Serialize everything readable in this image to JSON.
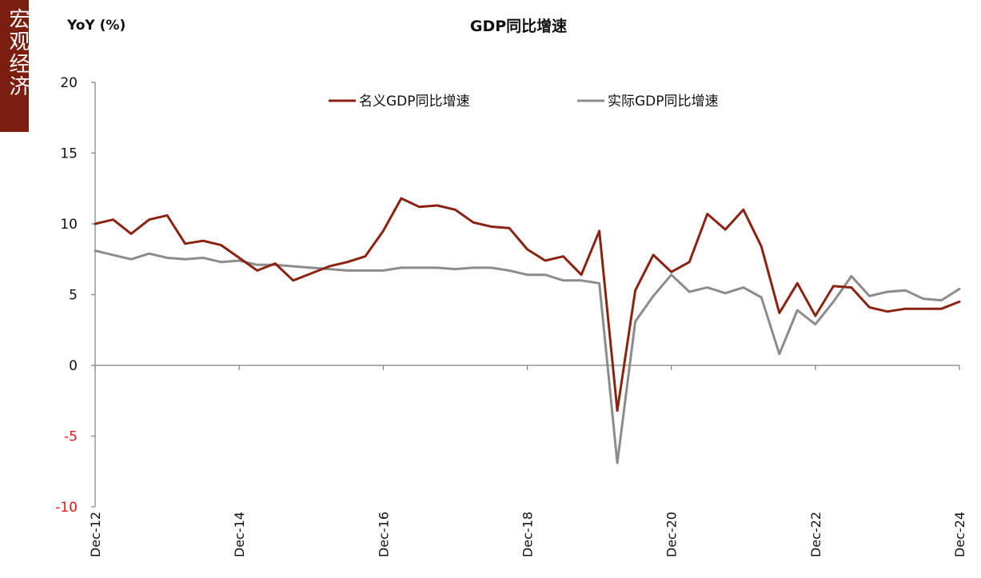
{
  "sidebar": {
    "label": "宏观经济"
  },
  "chart_data": {
    "type": "line",
    "title": "GDP同比增速",
    "ylabel": "YoY (%)",
    "xlabel": "",
    "ylim": [
      -10,
      20
    ],
    "yticks": [
      20,
      15,
      10,
      5,
      0,
      -5,
      -10
    ],
    "xtick_labels": [
      "Dec-12",
      "Dec-14",
      "Dec-16",
      "Dec-18",
      "Dec-20",
      "Dec-22",
      "Dec-24"
    ],
    "legend_position": "top",
    "colors": {
      "nominal": "#8b2312",
      "real": "#8c8c8c",
      "axis": "#7f7f7f",
      "negative_tick": "#e31a1a"
    },
    "series": [
      {
        "name": "名义GDP同比增速",
        "values": [
          10.0,
          10.3,
          9.3,
          10.3,
          10.6,
          8.6,
          8.8,
          8.5,
          7.6,
          6.7,
          7.2,
          6.0,
          6.5,
          7.0,
          7.3,
          7.7,
          9.5,
          11.8,
          11.2,
          11.3,
          11.0,
          10.1,
          9.8,
          9.7,
          8.2,
          7.4,
          7.7,
          6.4,
          9.5,
          -3.2,
          5.3,
          7.8,
          6.6,
          7.3,
          10.7,
          9.6,
          11.0,
          8.4,
          3.7,
          5.8,
          3.5,
          5.6,
          5.5,
          4.1,
          3.8,
          4.0,
          4.0,
          4.0,
          4.5
        ]
      },
      {
        "name": "实际GDP同比增速",
        "values": [
          8.1,
          7.8,
          7.5,
          7.9,
          7.6,
          7.5,
          7.6,
          7.3,
          7.4,
          7.1,
          7.1,
          7.0,
          6.9,
          6.8,
          6.7,
          6.7,
          6.7,
          6.9,
          6.9,
          6.9,
          6.8,
          6.9,
          6.9,
          6.7,
          6.4,
          6.4,
          6.0,
          6.0,
          5.8,
          -6.9,
          3.1,
          4.9,
          6.4,
          5.2,
          5.5,
          5.1,
          5.5,
          4.8,
          0.8,
          3.9,
          2.9,
          4.5,
          6.3,
          4.9,
          5.2,
          5.3,
          4.7,
          4.6,
          5.4
        ]
      }
    ]
  }
}
